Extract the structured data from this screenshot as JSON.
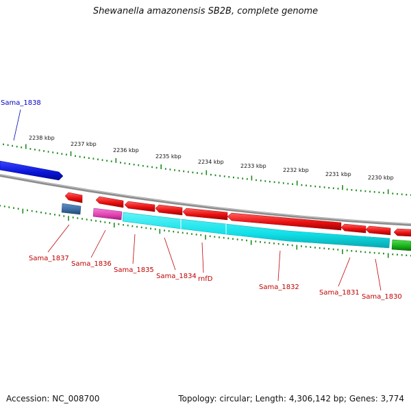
{
  "title": "Shewanella amazonensis SB2B, complete genome",
  "footer": {
    "accession": "Accession: NC_008700",
    "summary": "Topology: circular; Length: 4,306,142 bp; Genes: 3,774"
  },
  "colors": {
    "forward_gene": "#0a14d8",
    "reverse_gene": "#e81010",
    "cds_band": "#10e0e8",
    "pink_band": "#e040b0",
    "steel_gene": "#3a6aa0",
    "green_gene": "#18b018",
    "backbone": "#909090",
    "tick": "#1a8a1a",
    "label_red": "#c00000",
    "label_blue": "#0000c0"
  },
  "kbp_labels": [
    "2238 kbp",
    "2237 kbp",
    "2236 kbp",
    "2235 kbp",
    "2234 kbp",
    "2233 kbp",
    "2232 kbp",
    "2231 kbp",
    "2230 kbp"
  ],
  "genes": [
    {
      "name": "Sama_1838",
      "strand": "forward"
    },
    {
      "name": "Sama_1837",
      "strand": "reverse"
    },
    {
      "name": "Sama_1836",
      "strand": "reverse"
    },
    {
      "name": "Sama_1835",
      "strand": "reverse"
    },
    {
      "name": "Sama_1834",
      "strand": "reverse"
    },
    {
      "name": "rnfD",
      "strand": "reverse"
    },
    {
      "name": "Sama_1832",
      "strand": "reverse"
    },
    {
      "name": "Sama_1831",
      "strand": "reverse"
    },
    {
      "name": "Sama_1830",
      "strand": "reverse"
    }
  ]
}
